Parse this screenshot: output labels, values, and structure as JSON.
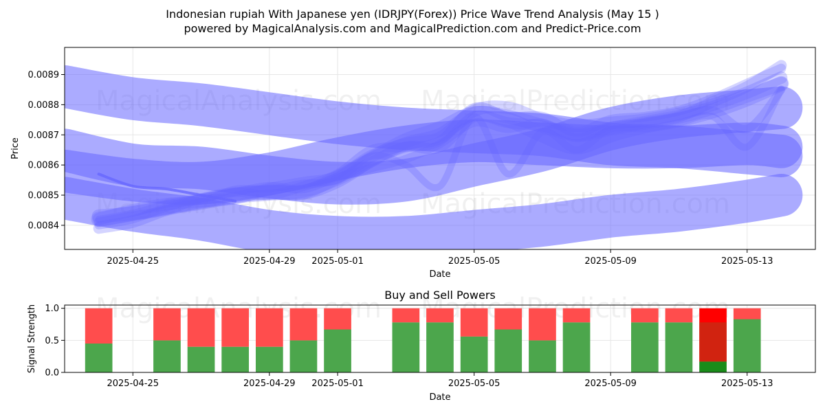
{
  "title_line1": "Indonesian rupiah With Japanese yen (IDRJPY(Forex)) Price Wave Trend Analysis (May 15 )",
  "title_line2": "powered by MagicalAnalysis.com and MagicalPrediction.com and Predict-Price.com",
  "watermarks": [
    "MagicalAnalysis.com",
    "MagicalPrediction.com"
  ],
  "colors": {
    "wave": "#6666ff",
    "buy": "#4ca64c",
    "sell": "#ff4d4d",
    "buy_strong": "#1a8c1a",
    "sell_strong": "#ff0000"
  },
  "chart_data": [
    {
      "type": "line",
      "subtype": "price-wave-bands",
      "xlabel": "Date",
      "ylabel": "Price",
      "xlim": [
        "2025-04-23",
        "2025-05-15"
      ],
      "ylim": [
        0.00832,
        0.00899
      ],
      "grid": true,
      "x_ticks": [
        "2025-04-25",
        "2025-04-29",
        "2025-05-01",
        "2025-05-05",
        "2025-05-09",
        "2025-05-13"
      ],
      "y_ticks": [
        0.0084,
        0.0085,
        0.0086,
        0.0087,
        0.0088,
        0.0089
      ],
      "x": [
        "2025-04-24",
        "2025-04-25",
        "2025-04-26",
        "2025-04-27",
        "2025-04-28",
        "2025-04-29",
        "2025-04-30",
        "2025-05-01",
        "2025-05-02",
        "2025-05-03",
        "2025-05-04",
        "2025-05-05",
        "2025-05-06",
        "2025-05-07",
        "2025-05-08",
        "2025-05-09",
        "2025-05-10",
        "2025-05-11",
        "2025-05-12",
        "2025-05-13",
        "2025-05-14"
      ],
      "series": [
        {
          "values": [
            0.00842,
            0.00844,
            0.00846,
            0.00848,
            0.0085,
            0.00851,
            0.00851,
            0.00855,
            0.00862,
            0.00868,
            0.00872,
            0.00877,
            0.00875,
            0.0087,
            0.00866,
            0.0087,
            0.00873,
            0.00875,
            0.00878,
            0.00882,
            0.00887
          ]
        },
        {
          "values": [
            0.00842,
            0.00845,
            0.00847,
            0.00848,
            0.00849,
            0.00852,
            0.00854,
            0.00856,
            0.00863,
            0.00867,
            0.00869,
            0.00878,
            0.00879,
            0.00875,
            0.00873,
            0.00874,
            0.00875,
            0.00877,
            0.0088,
            0.00884,
            0.00889
          ]
        },
        {
          "values": [
            0.00841,
            0.00843,
            0.00845,
            0.00849,
            0.00851,
            0.0085,
            0.00853,
            0.00857,
            0.00865,
            0.00866,
            0.00868,
            0.00879,
            0.00876,
            0.00876,
            0.00871,
            0.00875,
            0.00876,
            0.00878,
            0.00882,
            0.00887,
            0.00892
          ]
        },
        {
          "values": [
            0.0084,
            0.00842,
            0.00846,
            0.00849,
            0.00851,
            0.00853,
            0.00852,
            0.00856,
            0.00859,
            0.00862,
            0.00867,
            0.00874,
            0.00872,
            0.00874,
            0.00869,
            0.00873,
            0.00874,
            0.00876,
            0.00878,
            0.00872,
            0.00885
          ]
        },
        {
          "values": [
            0.00842,
            0.00844,
            0.00847,
            0.00848,
            0.00852,
            0.00852,
            0.00854,
            0.00855,
            0.00863,
            0.0086,
            0.00853,
            0.00876,
            0.00857,
            0.00871,
            0.00865,
            0.00872,
            0.00872,
            0.00874,
            0.00876,
            0.00866,
            0.00885
          ]
        },
        {
          "values": [
            0.00839,
            0.00841,
            0.00845,
            0.00847,
            0.00849,
            0.0085,
            0.00851,
            0.00855,
            0.00861,
            0.00866,
            0.00866,
            0.00876,
            0.00874,
            0.00873,
            0.0087,
            0.00872,
            0.00874,
            0.00876,
            0.00881,
            0.00886,
            0.00893
          ]
        },
        {
          "values": [
            0.00843,
            0.00844,
            0.00846,
            0.00848,
            0.0085,
            0.00851,
            0.00851,
            0.00856,
            0.00862,
            0.00867,
            0.0087,
            0.00877,
            0.00876,
            0.00873,
            0.0087,
            0.00872,
            0.00874,
            0.00876,
            0.00879,
            0.00883,
            0.00887
          ]
        }
      ],
      "wide_bands": [
        {
          "x": [
            "2025-04-23",
            "2025-04-25",
            "2025-04-27",
            "2025-04-29",
            "2025-05-01",
            "2025-05-03",
            "2025-05-05",
            "2025-05-07",
            "2025-05-09",
            "2025-05-11",
            "2025-05-13",
            "2025-05-14"
          ],
          "values": [
            0.00886,
            0.00882,
            0.0088,
            0.00877,
            0.00874,
            0.00872,
            0.00871,
            0.0087,
            0.00867,
            0.00866,
            0.00864,
            0.00863
          ]
        },
        {
          "x": [
            "2025-04-23",
            "2025-04-25",
            "2025-04-27",
            "2025-04-29",
            "2025-05-01",
            "2025-05-03",
            "2025-05-05",
            "2025-05-07",
            "2025-05-09",
            "2025-05-11",
            "2025-05-13",
            "2025-05-14"
          ],
          "values": [
            0.00865,
            0.0086,
            0.00859,
            0.00856,
            0.00854,
            0.00855,
            0.0086,
            0.00865,
            0.00872,
            0.00876,
            0.00878,
            0.00879
          ]
        },
        {
          "x": [
            "2025-04-23",
            "2025-04-25",
            "2025-04-27",
            "2025-04-29",
            "2025-05-01",
            "2025-05-03",
            "2025-05-05",
            "2025-05-07",
            "2025-05-09",
            "2025-05-11",
            "2025-05-13",
            "2025-05-14"
          ],
          "values": [
            0.00849,
            0.00845,
            0.00842,
            0.00838,
            0.00836,
            0.00836,
            0.00838,
            0.0084,
            0.00843,
            0.00845,
            0.00848,
            0.0085
          ]
        },
        {
          "x": [
            "2025-04-23",
            "2025-04-25",
            "2025-04-27",
            "2025-04-29",
            "2025-05-01",
            "2025-05-03",
            "2025-05-05",
            "2025-05-07",
            "2025-05-09",
            "2025-05-11",
            "2025-05-13",
            "2025-05-14"
          ],
          "values": [
            0.00858,
            0.00855,
            0.00854,
            0.00857,
            0.00862,
            0.00866,
            0.00868,
            0.00867,
            0.00866,
            0.00866,
            0.00867,
            0.00866
          ]
        }
      ],
      "thin_line": {
        "x": [
          "2025-04-24",
          "2025-04-25",
          "2025-04-26",
          "2025-04-27",
          "2025-04-28"
        ],
        "values": [
          0.00857,
          0.00853,
          0.00852,
          0.0085,
          0.00848
        ]
      }
    },
    {
      "type": "bar",
      "subtype": "stacked",
      "title": "Buy and Sell Powers",
      "xlabel": "Date",
      "ylabel": "Signal Strength",
      "xlim": [
        "2025-04-23",
        "2025-05-15"
      ],
      "ylim": [
        0,
        1.05
      ],
      "grid": true,
      "x_ticks": [
        "2025-04-25",
        "2025-04-29",
        "2025-05-01",
        "2025-05-05",
        "2025-05-09",
        "2025-05-13"
      ],
      "y_ticks": [
        0.0,
        0.5,
        1.0
      ],
      "categories": [
        "2025-04-24",
        "2025-04-26",
        "2025-04-27",
        "2025-04-28",
        "2025-04-29",
        "2025-04-30",
        "2025-05-01",
        "2025-05-03",
        "2025-05-04",
        "2025-05-05",
        "2025-05-06",
        "2025-05-07",
        "2025-05-08",
        "2025-05-10",
        "2025-05-11",
        "2025-05-12",
        "2025-05-13"
      ],
      "series": [
        {
          "name": "buy",
          "values": [
            0.45,
            0.5,
            0.4,
            0.4,
            0.4,
            0.5,
            0.67,
            0.78,
            0.78,
            0.56,
            0.67,
            0.5,
            0.78,
            0.78,
            0.78,
            0.17,
            0.83
          ]
        },
        {
          "name": "sell",
          "values": [
            0.55,
            0.5,
            0.6,
            0.6,
            0.6,
            0.5,
            0.33,
            0.22,
            0.22,
            0.44,
            0.33,
            0.5,
            0.22,
            0.22,
            0.22,
            0.83,
            0.17
          ]
        }
      ],
      "highlighted_category": "2025-05-12"
    }
  ]
}
